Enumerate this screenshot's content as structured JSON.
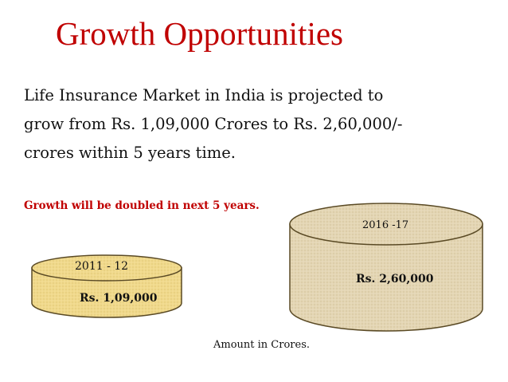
{
  "slide": {
    "title": "Growth Opportunities",
    "body_lines": [
      "Life Insurance Market in India is projected to",
      "grow from Rs. 1,09,000 Crores to Rs. 2,60,000/-",
      "crores within 5 years time."
    ],
    "highlight": "Growth will be doubled in next 5 years.",
    "footnote": "Amount in Crores."
  },
  "cylinders": [
    {
      "year": "2011 - 12",
      "amount": "Rs. 1,09,000",
      "fill": "#f0d98c",
      "rim": "#f5e6ad"
    },
    {
      "year": "2016 -17",
      "amount": "Rs. 2,60,000",
      "fill": "#e4d6b4",
      "rim": "#ece2c8"
    }
  ],
  "colors": {
    "title": "#c00000",
    "highlight": "#c00000"
  }
}
